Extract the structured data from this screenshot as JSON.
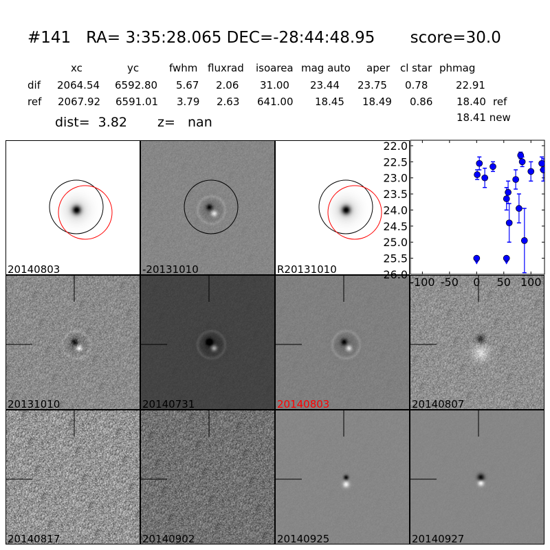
{
  "header": {
    "title": "#141   RA= 3:35:28.065 DEC=-28:44:48.95       score=30.0",
    "columns": [
      "xc",
      "yc",
      "fwhm",
      "fluxrad",
      "isoarea",
      "mag auto",
      "aper",
      "cl star",
      "phmag"
    ],
    "rows": [
      {
        "label": "dif",
        "values": [
          "2064.54",
          "6592.80",
          "5.67",
          "2.06",
          "31.00",
          "23.44",
          "23.75",
          "0.78",
          "22.91"
        ],
        "suffix": ""
      },
      {
        "label": "ref",
        "values": [
          "2067.92",
          "6591.01",
          "3.79",
          "2.63",
          "641.00",
          "18.45",
          "18.49",
          "0.86",
          "18.40"
        ],
        "suffix": "ref"
      }
    ],
    "new_line": "18.41 new",
    "dist": "dist=  3.82",
    "z": "z=   nan"
  },
  "panels": [
    {
      "label": "20140803",
      "label_color": "#000000"
    },
    {
      "label": "-20131010",
      "label_color": "#000000"
    },
    {
      "label": "R20131010",
      "label_color": "#000000"
    },
    {
      "label": "20131010",
      "label_color": "#000000"
    },
    {
      "label": "20140731",
      "label_color": "#000000"
    },
    {
      "label": "20140803",
      "label_color": "#ff0000"
    },
    {
      "label": "20140807",
      "label_color": "#000000"
    },
    {
      "label": "20140817",
      "label_color": "#000000"
    },
    {
      "label": "20140902",
      "label_color": "#000000"
    },
    {
      "label": "20140925",
      "label_color": "#000000"
    },
    {
      "label": "20140927",
      "label_color": "#000000"
    }
  ],
  "chart_data": {
    "type": "scatter",
    "xlim": [
      -122,
      125
    ],
    "ylim": [
      26.0,
      21.83
    ],
    "y_inverted": true,
    "xticks": [
      "-100",
      "-50",
      "0",
      "50",
      "100"
    ],
    "yticks": [
      "22.0",
      "22.5",
      "23.0",
      "23.5",
      "24.0",
      "24.5",
      "25.0",
      "25.5",
      "26.0"
    ],
    "marker_color": "#0000ff",
    "points": [
      {
        "x": 1,
        "y": 22.9,
        "err": 0.15
      },
      {
        "x": 5,
        "y": 22.55,
        "err": 0.2
      },
      {
        "x": 15,
        "y": 23.0,
        "err": 0.3
      },
      {
        "x": 30,
        "y": 22.65,
        "err": 0.15
      },
      {
        "x": 55,
        "y": 23.65,
        "err": 0.35
      },
      {
        "x": 58,
        "y": 23.45,
        "err": 0.35
      },
      {
        "x": 60,
        "y": 24.4,
        "err": 0.6
      },
      {
        "x": 72,
        "y": 23.05,
        "err": 0.3
      },
      {
        "x": 78,
        "y": 23.95,
        "err": 0.45
      },
      {
        "x": 81,
        "y": 22.3,
        "err": 0.1
      },
      {
        "x": 84,
        "y": 22.5,
        "err": 0.15
      },
      {
        "x": 88,
        "y": 24.95,
        "err": 1.0
      },
      {
        "x": 100,
        "y": 22.8,
        "err": 0.3
      },
      {
        "x": 120,
        "y": 22.55,
        "err": 0.2
      },
      {
        "x": 123,
        "y": 22.75,
        "err": 0.35
      }
    ],
    "upper_limits": [
      {
        "x": 0,
        "y": 25.5
      },
      {
        "x": 55,
        "y": 25.5
      }
    ]
  }
}
